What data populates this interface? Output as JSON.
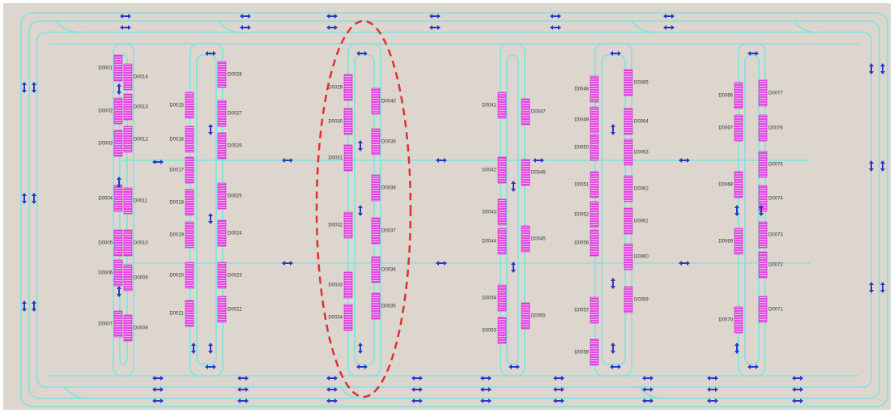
{
  "racks": [
    {
      "labels": [
        "D0001",
        "D0002",
        "D0003",
        "D0004",
        "D0005",
        "D0006",
        "D0007"
      ]
    },
    {
      "labels": [
        "D0014",
        "D0013",
        "D0012",
        "D0011",
        "D0010",
        "D0009",
        "D0008"
      ]
    },
    {
      "labels": [
        "D0015",
        "D0016",
        "D0017",
        "D0018",
        "D0019",
        "D0020",
        "D0021"
      ]
    },
    {
      "labels": [
        "D0028",
        "D0027",
        "D0026",
        "D0025",
        "D0024",
        "D0023",
        "D0022"
      ]
    },
    {
      "labels": [
        "D0029",
        "D0030",
        "D0031",
        "D0032",
        "D0033",
        "D0034"
      ]
    },
    {
      "labels": [
        "D0040",
        "D0039",
        "D0038",
        "D0037",
        "D0036",
        "D0035"
      ]
    },
    {
      "labels": [
        "D0041",
        "D0042",
        "D0043",
        "D0044",
        "D0054",
        "D0053"
      ]
    },
    {
      "labels": [
        "D0047",
        "D0046",
        "D0045",
        "D0055"
      ]
    },
    {
      "labels": [
        "D0048",
        "D0049",
        "D0050",
        "D0051",
        "D0052",
        "D0056",
        "D0057",
        "D0058"
      ]
    },
    {
      "labels": [
        "D0065",
        "D0064",
        "D0063",
        "D0062",
        "D0061",
        "D0060",
        "D0059"
      ]
    },
    {
      "labels": [
        "D0066",
        "D0067",
        "D0068",
        "D0069",
        "D0070"
      ]
    },
    {
      "labels": [
        "D0077",
        "D0076",
        "D0075",
        "D0074",
        "D0073",
        "D0072",
        "D0071"
      ]
    }
  ]
}
